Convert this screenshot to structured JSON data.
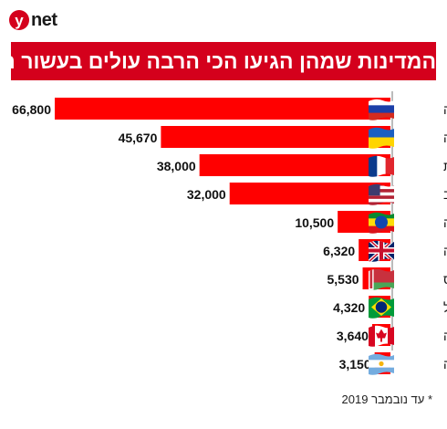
{
  "brand": {
    "logo_letter": "y",
    "logo_word": "net",
    "logo_color": "#d4001c"
  },
  "chart_data": {
    "type": "bar",
    "orientation": "horizontal",
    "title": "המדינות שמהן הגיעו הכי הרבה עולים בעשור האחרון",
    "categories": [
      "רוסיה",
      "אוקראינה",
      "צרפת",
      "ארה\"ב",
      "אתיופיה",
      "בריטניה",
      "בלארוס",
      "ברזיל",
      "קנדה",
      "ארגנטינה"
    ],
    "values": [
      66800,
      45670,
      38000,
      32000,
      10500,
      6320,
      5530,
      4320,
      3640,
      3150
    ],
    "value_labels": [
      "66,800",
      "45,670",
      "38,000",
      "32,000",
      "10,500",
      "6,320",
      "5,530",
      "4,320",
      "3,640",
      "3,150"
    ],
    "flag_icons": [
      "flag-russia-icon",
      "flag-ukraine-icon",
      "flag-france-icon",
      "flag-usa-icon",
      "flag-ethiopia-icon",
      "flag-uk-icon",
      "flag-belarus-icon",
      "flag-brazil-icon",
      "flag-canada-icon",
      "flag-argentina-icon"
    ],
    "bar_color": "#ff0000",
    "grid": false,
    "legend": "none"
  },
  "footnote": "* עד נובמבר 2019"
}
